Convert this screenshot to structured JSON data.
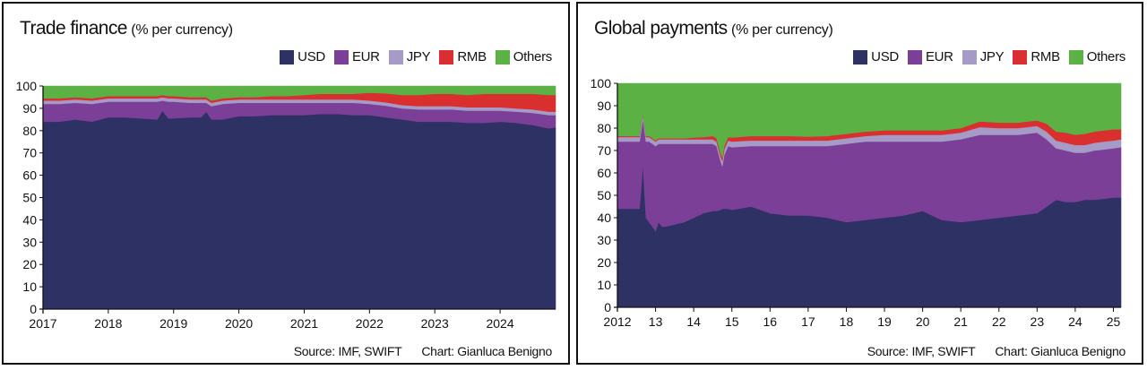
{
  "chart_data": [
    {
      "type": "area",
      "stacked": true,
      "title": "Trade finance",
      "subtitle": "(% per currency)",
      "ylim": [
        0,
        100
      ],
      "yticks": [
        "0",
        "10",
        "20",
        "30",
        "40",
        "50",
        "60",
        "70",
        "80",
        "90",
        "100"
      ],
      "xlim": [
        2017.0,
        2024.85
      ],
      "xticks": [
        {
          "value": 2017,
          "label": "2017"
        },
        {
          "value": 2018,
          "label": "2018"
        },
        {
          "value": 2019,
          "label": "2019"
        },
        {
          "value": 2020,
          "label": "2020"
        },
        {
          "value": 2021,
          "label": "2021"
        },
        {
          "value": 2022,
          "label": "2022"
        },
        {
          "value": 2023,
          "label": "2023"
        },
        {
          "value": 2024,
          "label": "2024"
        }
      ],
      "legend": "top-right",
      "grid": false,
      "source": "Source: IMF, SWIFT",
      "credit": "Chart: Gianluca Benigno",
      "x": [
        2017.0,
        2017.25,
        2017.5,
        2017.75,
        2018.0,
        2018.25,
        2018.5,
        2018.75,
        2018.83,
        2018.92,
        2019.0,
        2019.25,
        2019.42,
        2019.5,
        2019.58,
        2019.75,
        2020.0,
        2020.25,
        2020.5,
        2020.75,
        2021.0,
        2021.25,
        2021.5,
        2021.75,
        2022.0,
        2022.25,
        2022.5,
        2022.75,
        2023.0,
        2023.25,
        2023.5,
        2023.75,
        2024.0,
        2024.25,
        2024.5,
        2024.75,
        2024.85
      ],
      "series": [
        {
          "name": "USD",
          "color": "#2e3164",
          "values": [
            84,
            84,
            85,
            84,
            86,
            86,
            85.5,
            85,
            89,
            85.5,
            85.5,
            86,
            86,
            88.5,
            85,
            85,
            86.5,
            86.5,
            87,
            87,
            87,
            87.5,
            87.5,
            87,
            87,
            86,
            85,
            84,
            84,
            84,
            83.5,
            83.5,
            84,
            83.5,
            82.5,
            81,
            81.5
          ]
        },
        {
          "name": "EUR",
          "color": "#7b3f98",
          "values": [
            8,
            8,
            7.5,
            8,
            7,
            7,
            7.5,
            8,
            4.5,
            7.5,
            7.5,
            6.5,
            6.5,
            4,
            6,
            7,
            6,
            6,
            5.5,
            5.5,
            5.5,
            5,
            5,
            5.5,
            5,
            5.2,
            5,
            5.5,
            5.5,
            5.5,
            5.5,
            5.5,
            5,
            5,
            5.5,
            6,
            5.5
          ]
        },
        {
          "name": "JPY",
          "color": "#a59bc6",
          "values": [
            1.5,
            1.5,
            1.5,
            1.5,
            1.5,
            1.5,
            1.5,
            1.5,
            1.5,
            1.5,
            1.5,
            1.5,
            1.5,
            1.5,
            1.5,
            1.5,
            1.5,
            1.5,
            1.5,
            1.5,
            1.5,
            1.5,
            1.5,
            1.5,
            1.5,
            1.5,
            1.5,
            1.5,
            1.5,
            1.5,
            1.5,
            1.5,
            1.5,
            1.5,
            1.5,
            1.5,
            1.5
          ]
        },
        {
          "name": "RMB",
          "color": "#d92f2f",
          "values": [
            1,
            1,
            1,
            1,
            1,
            1,
            1,
            1,
            1,
            1,
            1,
            1,
            1,
            1,
            1,
            1,
            1,
            1,
            1.5,
            1.5,
            2,
            2.5,
            2.5,
            2.5,
            3.5,
            4,
            4.5,
            5,
            5.5,
            5.5,
            5.5,
            6,
            6,
            6.5,
            7,
            7.5,
            7.5
          ]
        },
        {
          "name": "Others",
          "color": "#5bb144",
          "values": [
            5.5,
            5.5,
            5,
            5.5,
            4.5,
            4.5,
            4.5,
            4.5,
            4,
            4.5,
            4.5,
            5,
            5,
            5,
            6.5,
            5.5,
            5,
            5,
            4.5,
            4.5,
            4,
            3.5,
            3.5,
            3.5,
            3,
            3.3,
            3,
            3,
            2.5,
            2.5,
            3,
            2.5,
            2.5,
            2.5,
            2.5,
            2.5,
            2.5
          ]
        }
      ]
    },
    {
      "type": "area",
      "stacked": true,
      "title": "Global payments",
      "subtitle": "(% per currency)",
      "ylim": [
        0,
        100
      ],
      "yticks": [
        "0",
        "10",
        "20",
        "30",
        "40",
        "50",
        "60",
        "70",
        "80",
        "90",
        "100"
      ],
      "xlim": [
        2012.0,
        2025.2
      ],
      "xticks": [
        {
          "value": 2012,
          "label": "2012"
        },
        {
          "value": 2013,
          "label": "13"
        },
        {
          "value": 2014,
          "label": "14"
        },
        {
          "value": 2015,
          "label": "15"
        },
        {
          "value": 2016,
          "label": "16"
        },
        {
          "value": 2017,
          "label": "17"
        },
        {
          "value": 2018,
          "label": "18"
        },
        {
          "value": 2019,
          "label": "19"
        },
        {
          "value": 2020,
          "label": "20"
        },
        {
          "value": 2021,
          "label": "21"
        },
        {
          "value": 2022,
          "label": "22"
        },
        {
          "value": 2023,
          "label": "23"
        },
        {
          "value": 2024,
          "label": "24"
        },
        {
          "value": 2025,
          "label": "25"
        }
      ],
      "legend": "top-right",
      "grid": false,
      "source": "Source: IMF, SWIFT",
      "credit": "Chart: Gianluca Benigno",
      "x": [
        2012.0,
        2012.5,
        2012.58,
        2012.67,
        2012.75,
        2012.83,
        2012.92,
        2013.0,
        2013.08,
        2013.17,
        2013.25,
        2013.5,
        2013.75,
        2014.0,
        2014.25,
        2014.5,
        2014.6,
        2014.7,
        2014.75,
        2014.8,
        2014.9,
        2015.0,
        2015.5,
        2016.0,
        2016.5,
        2017.0,
        2017.5,
        2018.0,
        2018.5,
        2019.0,
        2019.5,
        2020.0,
        2020.5,
        2021.0,
        2021.5,
        2022.0,
        2022.5,
        2023.0,
        2023.25,
        2023.5,
        2023.75,
        2024.0,
        2024.25,
        2024.5,
        2024.75,
        2025.0,
        2025.2
      ],
      "series": [
        {
          "name": "USD",
          "color": "#2e3164",
          "values": [
            44,
            44,
            44,
            64,
            40,
            38,
            36,
            34,
            38,
            36,
            36,
            37,
            38,
            40,
            42,
            43,
            43,
            43.5,
            44,
            44,
            44,
            43.5,
            45,
            42,
            41,
            41,
            40,
            38,
            39,
            40,
            41,
            43,
            39,
            38,
            39,
            40,
            41,
            42,
            45,
            48,
            47,
            47,
            48,
            48,
            48.5,
            49,
            49
          ]
        },
        {
          "name": "EUR",
          "color": "#7b3f98",
          "values": [
            30,
            30,
            30,
            20,
            34,
            36,
            37,
            38,
            35,
            37,
            37,
            36,
            35,
            33,
            31,
            30,
            29,
            22,
            19,
            24,
            28,
            28,
            27,
            30,
            31,
            31,
            32,
            35,
            35,
            34,
            33,
            31,
            35,
            37,
            38,
            37,
            36,
            36,
            30,
            23,
            23,
            22,
            21,
            22,
            22,
            22,
            22.5
          ]
        },
        {
          "name": "JPY",
          "color": "#a59bc6",
          "values": [
            2,
            2,
            2,
            2,
            2,
            2,
            2,
            2,
            2,
            2,
            2,
            2,
            2,
            2,
            2,
            2,
            2,
            2,
            2.5,
            2.5,
            2.5,
            2.5,
            2.5,
            2.5,
            2.5,
            2.5,
            2.5,
            2.5,
            2.5,
            3,
            3,
            3,
            3,
            3,
            3.5,
            3,
            3,
            3,
            3.5,
            3.5,
            3.5,
            3.5,
            3.5,
            3.5,
            3.5,
            3.5,
            3.5
          ]
        },
        {
          "name": "RMB",
          "color": "#d92f2f",
          "values": [
            0.5,
            0.5,
            0.5,
            0.5,
            0.5,
            0.5,
            0.5,
            0.5,
            0.5,
            0.5,
            0.5,
            0.5,
            0.5,
            0.8,
            1,
            1.5,
            1.5,
            1.5,
            1.5,
            1.5,
            1.5,
            1.8,
            2,
            2,
            2,
            1.7,
            2,
            2,
            2,
            2,
            2,
            2,
            2,
            2,
            2.5,
            2.5,
            2.5,
            2.5,
            3.5,
            4,
            4.5,
            4.5,
            5,
            5,
            5,
            5,
            4.5
          ]
        },
        {
          "name": "Others",
          "color": "#5bb144",
          "values": [
            23.5,
            23.5,
            23.5,
            13.5,
            23.5,
            23.5,
            24.5,
            25.5,
            24.5,
            24.5,
            24.5,
            24.5,
            24.5,
            24.2,
            24,
            23.5,
            24.5,
            31,
            33,
            28,
            24,
            24.2,
            23.5,
            23.5,
            23.5,
            23.8,
            23.5,
            22.5,
            21.5,
            21,
            21,
            21,
            21,
            20,
            17,
            17.5,
            17.5,
            16.5,
            18,
            21.5,
            22,
            23,
            22.5,
            21.5,
            21,
            20.5,
            21
          ]
        }
      ]
    }
  ]
}
